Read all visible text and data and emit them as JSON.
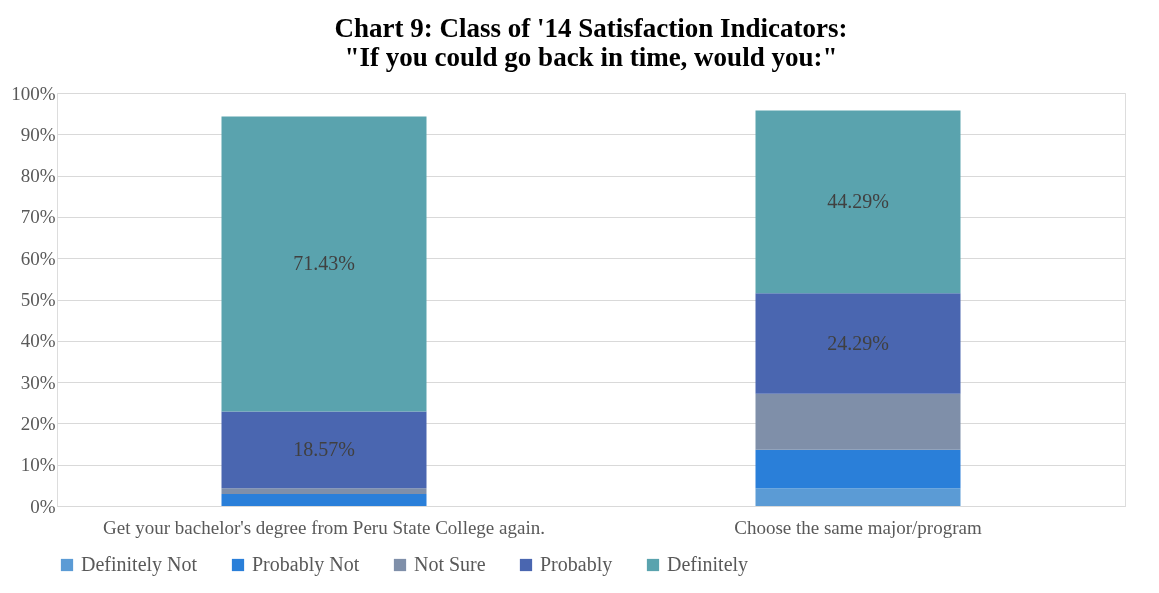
{
  "chart_data": {
    "type": "bar",
    "stacked": true,
    "title": "Chart 9: Class of '14 Satisfaction Indicators: \"If you could go back in time, would you:\"",
    "categories": [
      "Get your bachelor's degree from Peru State College again.",
      "Choose the same major/program"
    ],
    "series": [
      {
        "name": "Definitely Not",
        "color": "#5b9bd5",
        "values": [
          0,
          4.3
        ],
        "value_labels": [
          null,
          null
        ]
      },
      {
        "name": "Probably Not",
        "color": "#2a7fd9",
        "values": [
          2.9,
          9.3
        ],
        "value_labels": [
          null,
          null
        ]
      },
      {
        "name": "Not Sure",
        "color": "#7f8fa9",
        "values": [
          1.4,
          13.6
        ],
        "value_labels": [
          null,
          null
        ]
      },
      {
        "name": "Probably",
        "color": "#4a66b0",
        "values": [
          18.57,
          24.29
        ],
        "value_labels": [
          "18.57%",
          "24.29%"
        ]
      },
      {
        "name": "Definitely",
        "color": "#5aa3ae",
        "values": [
          71.43,
          44.29
        ],
        "value_labels": [
          "71.43%",
          "44.29%"
        ]
      }
    ],
    "ylim": [
      0,
      100
    ],
    "yticks": [
      {
        "value": 0,
        "label": "0%"
      },
      {
        "value": 10,
        "label": "10%"
      },
      {
        "value": 20,
        "label": "20%"
      },
      {
        "value": 30,
        "label": "30%"
      },
      {
        "value": 40,
        "label": "40%"
      },
      {
        "value": 50,
        "label": "50%"
      },
      {
        "value": 60,
        "label": "60%"
      },
      {
        "value": 70,
        "label": "70%"
      },
      {
        "value": 80,
        "label": "80%"
      },
      {
        "value": 90,
        "label": "90%"
      },
      {
        "value": 100,
        "label": "100%"
      }
    ],
    "grid": "y",
    "legend": "bottom"
  }
}
